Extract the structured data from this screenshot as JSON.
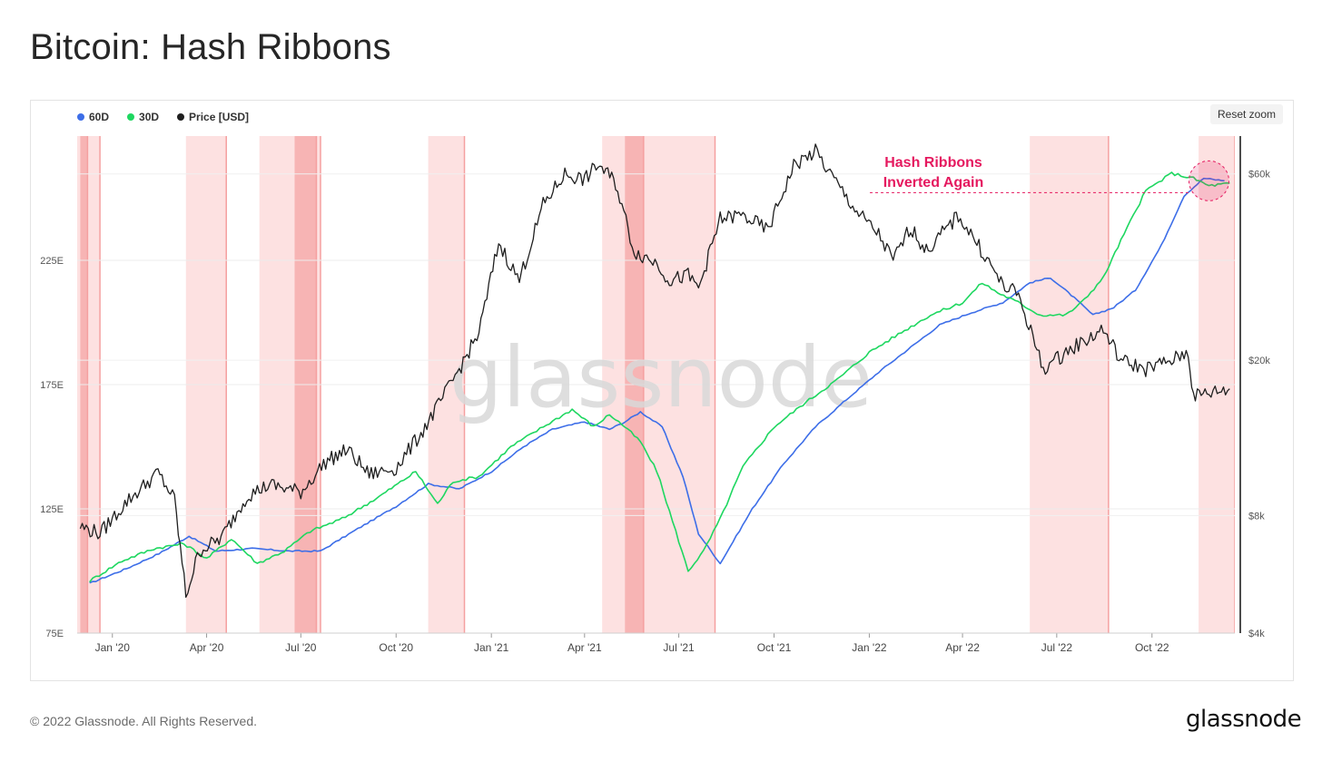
{
  "header": {
    "title": "Bitcoin: Hash Ribbons"
  },
  "toolbar": {
    "reset_zoom_label": "Reset zoom"
  },
  "footer": {
    "copyright": "© 2022 Glassnode. All Rights Reserved.",
    "logo_text": "glassnode"
  },
  "watermark": "glassnode",
  "colors": {
    "ma60": "#3d6ee8",
    "ma30": "#1ed760",
    "price": "#1f1f1f",
    "annotation": "#e5195f",
    "band_light": "#fde1e1",
    "band_dark": "#f7b4b4"
  },
  "chart_data": {
    "type": "line",
    "title": "Bitcoin: Hash Ribbons",
    "legend_position": "top-left",
    "grid": true,
    "series": [
      {
        "name": "60D",
        "color": "#3d6ee8",
        "x": [
          "2019-12-10",
          "2020-01-15",
          "2020-02-15",
          "2020-03-15",
          "2020-04-10",
          "2020-05-15",
          "2020-06-20",
          "2020-07-20",
          "2020-08-25",
          "2020-10-01",
          "2020-11-01",
          "2020-12-01",
          "2021-01-01",
          "2021-02-01",
          "2021-03-01",
          "2021-04-01",
          "2021-04-25",
          "2021-05-10",
          "2021-05-25",
          "2021-06-15",
          "2021-07-05",
          "2021-07-20",
          "2021-08-10",
          "2021-09-10",
          "2021-10-10",
          "2021-11-10",
          "2021-12-10",
          "2022-01-10",
          "2022-02-10",
          "2022-03-10",
          "2022-04-10",
          "2022-05-10",
          "2022-06-05",
          "2022-06-25",
          "2022-07-15",
          "2022-08-05",
          "2022-08-25",
          "2022-09-15",
          "2022-10-10",
          "2022-11-01",
          "2022-11-20",
          "2022-12-10"
        ],
        "values": [
          95,
          101,
          107,
          114,
          108,
          109,
          108,
          108,
          117,
          126,
          135,
          133,
          140,
          150,
          157,
          160,
          157,
          160,
          164,
          158,
          138,
          115,
          103,
          125,
          143,
          158,
          169,
          180,
          190,
          199,
          204,
          208,
          216,
          218,
          211,
          203,
          206,
          213,
          231,
          251,
          258,
          257
        ]
      },
      {
        "name": "30D",
        "color": "#1ed760",
        "x": [
          "2019-12-10",
          "2020-01-10",
          "2020-02-10",
          "2020-03-10",
          "2020-04-01",
          "2020-04-25",
          "2020-05-20",
          "2020-06-15",
          "2020-07-10",
          "2020-08-10",
          "2020-09-15",
          "2020-10-20",
          "2020-11-10",
          "2020-11-25",
          "2020-12-20",
          "2021-01-20",
          "2021-02-20",
          "2021-03-20",
          "2021-04-10",
          "2021-04-25",
          "2021-05-10",
          "2021-05-25",
          "2021-06-10",
          "2021-06-25",
          "2021-07-10",
          "2021-07-25",
          "2021-08-10",
          "2021-09-01",
          "2021-10-01",
          "2021-11-01",
          "2021-12-01",
          "2022-01-01",
          "2022-02-01",
          "2022-03-01",
          "2022-04-01",
          "2022-04-20",
          "2022-05-05",
          "2022-05-25",
          "2022-06-15",
          "2022-07-10",
          "2022-07-25",
          "2022-08-15",
          "2022-09-01",
          "2022-09-25",
          "2022-10-20",
          "2022-11-10",
          "2022-11-25",
          "2022-12-15"
        ],
        "values": [
          96,
          104,
          109,
          111,
          105,
          113,
          103,
          108,
          116,
          121,
          130,
          140,
          127,
          136,
          138,
          150,
          158,
          165,
          158,
          163,
          158,
          152,
          140,
          120,
          100,
          108,
          121,
          142,
          158,
          168,
          177,
          188,
          196,
          203,
          208,
          216,
          212,
          208,
          203,
          203,
          208,
          218,
          233,
          253,
          260,
          258,
          255,
          256
        ]
      },
      {
        "name": "Price [USD]",
        "color": "#1f1f1f",
        "axis": "right",
        "x": [
          "2019-12-01",
          "2019-12-20",
          "2020-01-15",
          "2020-02-14",
          "2020-03-01",
          "2020-03-12",
          "2020-03-25",
          "2020-04-15",
          "2020-05-10",
          "2020-06-01",
          "2020-07-01",
          "2020-07-25",
          "2020-08-15",
          "2020-09-05",
          "2020-10-01",
          "2020-10-25",
          "2020-11-15",
          "2020-12-01",
          "2020-12-20",
          "2021-01-08",
          "2021-01-28",
          "2021-02-20",
          "2021-03-13",
          "2021-04-01",
          "2021-04-14",
          "2021-05-01",
          "2021-05-19",
          "2021-06-10",
          "2021-06-22",
          "2021-07-10",
          "2021-07-20",
          "2021-08-10",
          "2021-08-30",
          "2021-09-07",
          "2021-09-25",
          "2021-10-20",
          "2021-11-10",
          "2021-11-30",
          "2021-12-20",
          "2022-01-10",
          "2022-01-24",
          "2022-02-10",
          "2022-02-25",
          "2022-03-28",
          "2022-04-15",
          "2022-05-10",
          "2022-05-25",
          "2022-06-18",
          "2022-07-10",
          "2022-08-15",
          "2022-09-01",
          "2022-09-25",
          "2022-10-20",
          "2022-11-05",
          "2022-11-10",
          "2022-11-25",
          "2022-12-15"
        ],
        "values": [
          7500,
          7200,
          8700,
          10300,
          8800,
          5000,
          6500,
          7000,
          9000,
          9600,
          9200,
          11000,
          11800,
          10200,
          10600,
          13000,
          16000,
          19000,
          23500,
          40000,
          32000,
          50000,
          60000,
          58000,
          63500,
          57000,
          38000,
          35500,
          32000,
          33000,
          30500,
          46000,
          47000,
          46000,
          43000,
          63000,
          68500,
          57000,
          48000,
          42000,
          36000,
          44000,
          38000,
          47000,
          40000,
          31000,
          29500,
          19000,
          21000,
          24000,
          20000,
          19000,
          20000,
          21000,
          16200,
          16500,
          16900
        ]
      }
    ],
    "y_left": {
      "ticks": [
        "75E",
        "125E",
        "175E",
        "225E"
      ],
      "range": [
        75,
        275
      ]
    },
    "y_right": {
      "ticks": [
        "$4k",
        "$8k",
        "$20k",
        "$60k"
      ],
      "scale": "log",
      "range": [
        4000,
        75000
      ]
    },
    "x_axis": {
      "ticks": [
        "Jan '20",
        "Apr '20",
        "Jul '20",
        "Oct '20",
        "Jan '21",
        "Apr '21",
        "Jul '21",
        "Oct '21",
        "Jan '22",
        "Apr '22",
        "Jul '22",
        "Oct '22"
      ],
      "range": [
        "2019-11-28",
        "2022-12-20"
      ]
    },
    "capitulation_bands": [
      {
        "start": "2019-11-28",
        "end": "2019-12-20",
        "shade": "light"
      },
      {
        "start": "2019-12-01",
        "end": "2019-12-08",
        "shade": "dark"
      },
      {
        "start": "2020-03-12",
        "end": "2020-04-20",
        "shade": "light"
      },
      {
        "start": "2020-05-22",
        "end": "2020-07-20",
        "shade": "light"
      },
      {
        "start": "2020-06-25",
        "end": "2020-07-16",
        "shade": "dark"
      },
      {
        "start": "2020-11-01",
        "end": "2020-12-06",
        "shade": "light"
      },
      {
        "start": "2021-04-18",
        "end": "2021-08-05",
        "shade": "light"
      },
      {
        "start": "2021-05-10",
        "end": "2021-05-28",
        "shade": "dark"
      },
      {
        "start": "2022-06-05",
        "end": "2022-08-20",
        "shade": "light"
      },
      {
        "start": "2022-11-15",
        "end": "2022-12-20",
        "shade": "light"
      }
    ],
    "annotations": [
      {
        "text_lines": [
          "Hash Ribbons",
          "Inverted Again"
        ],
        "date": "2022-11-25",
        "value": 257
      }
    ]
  }
}
